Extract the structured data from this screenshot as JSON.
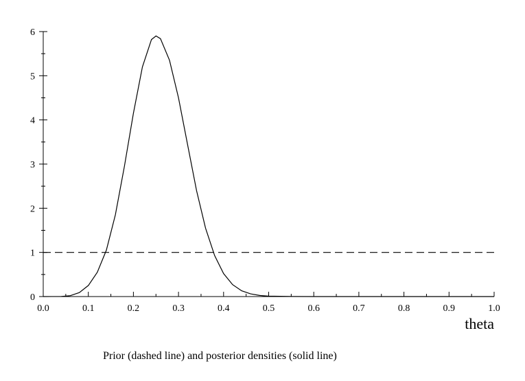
{
  "chart_data": {
    "type": "line",
    "title": "",
    "xlabel": "theta",
    "ylabel": "",
    "xlim": [
      0,
      1.0
    ],
    "ylim": [
      0,
      6
    ],
    "xticks": [
      "0.0",
      "0.1",
      "0.2",
      "0.3",
      "0.4",
      "0.5",
      "0.6",
      "0.7",
      "0.8",
      "0.9",
      "1.0"
    ],
    "yticks": [
      "0",
      "1",
      "2",
      "3",
      "4",
      "5",
      "6"
    ],
    "grid": false,
    "series": [
      {
        "style": "dashed",
        "x": [
          0,
          1.0
        ],
        "y": [
          1,
          1
        ]
      },
      {
        "style": "solid",
        "x": [
          0,
          0.04,
          0.06,
          0.08,
          0.1,
          0.12,
          0.14,
          0.16,
          0.18,
          0.2,
          0.22,
          0.24,
          0.25,
          0.26,
          0.28,
          0.3,
          0.32,
          0.34,
          0.36,
          0.38,
          0.4,
          0.42,
          0.44,
          0.46,
          0.48,
          0.5,
          0.55,
          0.6,
          0.7,
          0.8,
          0.9,
          1.0
        ],
        "y": [
          0,
          0.003,
          0.02,
          0.09,
          0.25,
          0.55,
          1.05,
          1.85,
          2.95,
          4.15,
          5.2,
          5.82,
          5.9,
          5.84,
          5.35,
          4.5,
          3.45,
          2.4,
          1.55,
          0.93,
          0.52,
          0.27,
          0.13,
          0.06,
          0.025,
          0.01,
          0.002,
          0,
          0,
          0,
          0,
          0
        ]
      }
    ]
  },
  "caption": "Prior (dashed line) and posterior densities (solid line)"
}
